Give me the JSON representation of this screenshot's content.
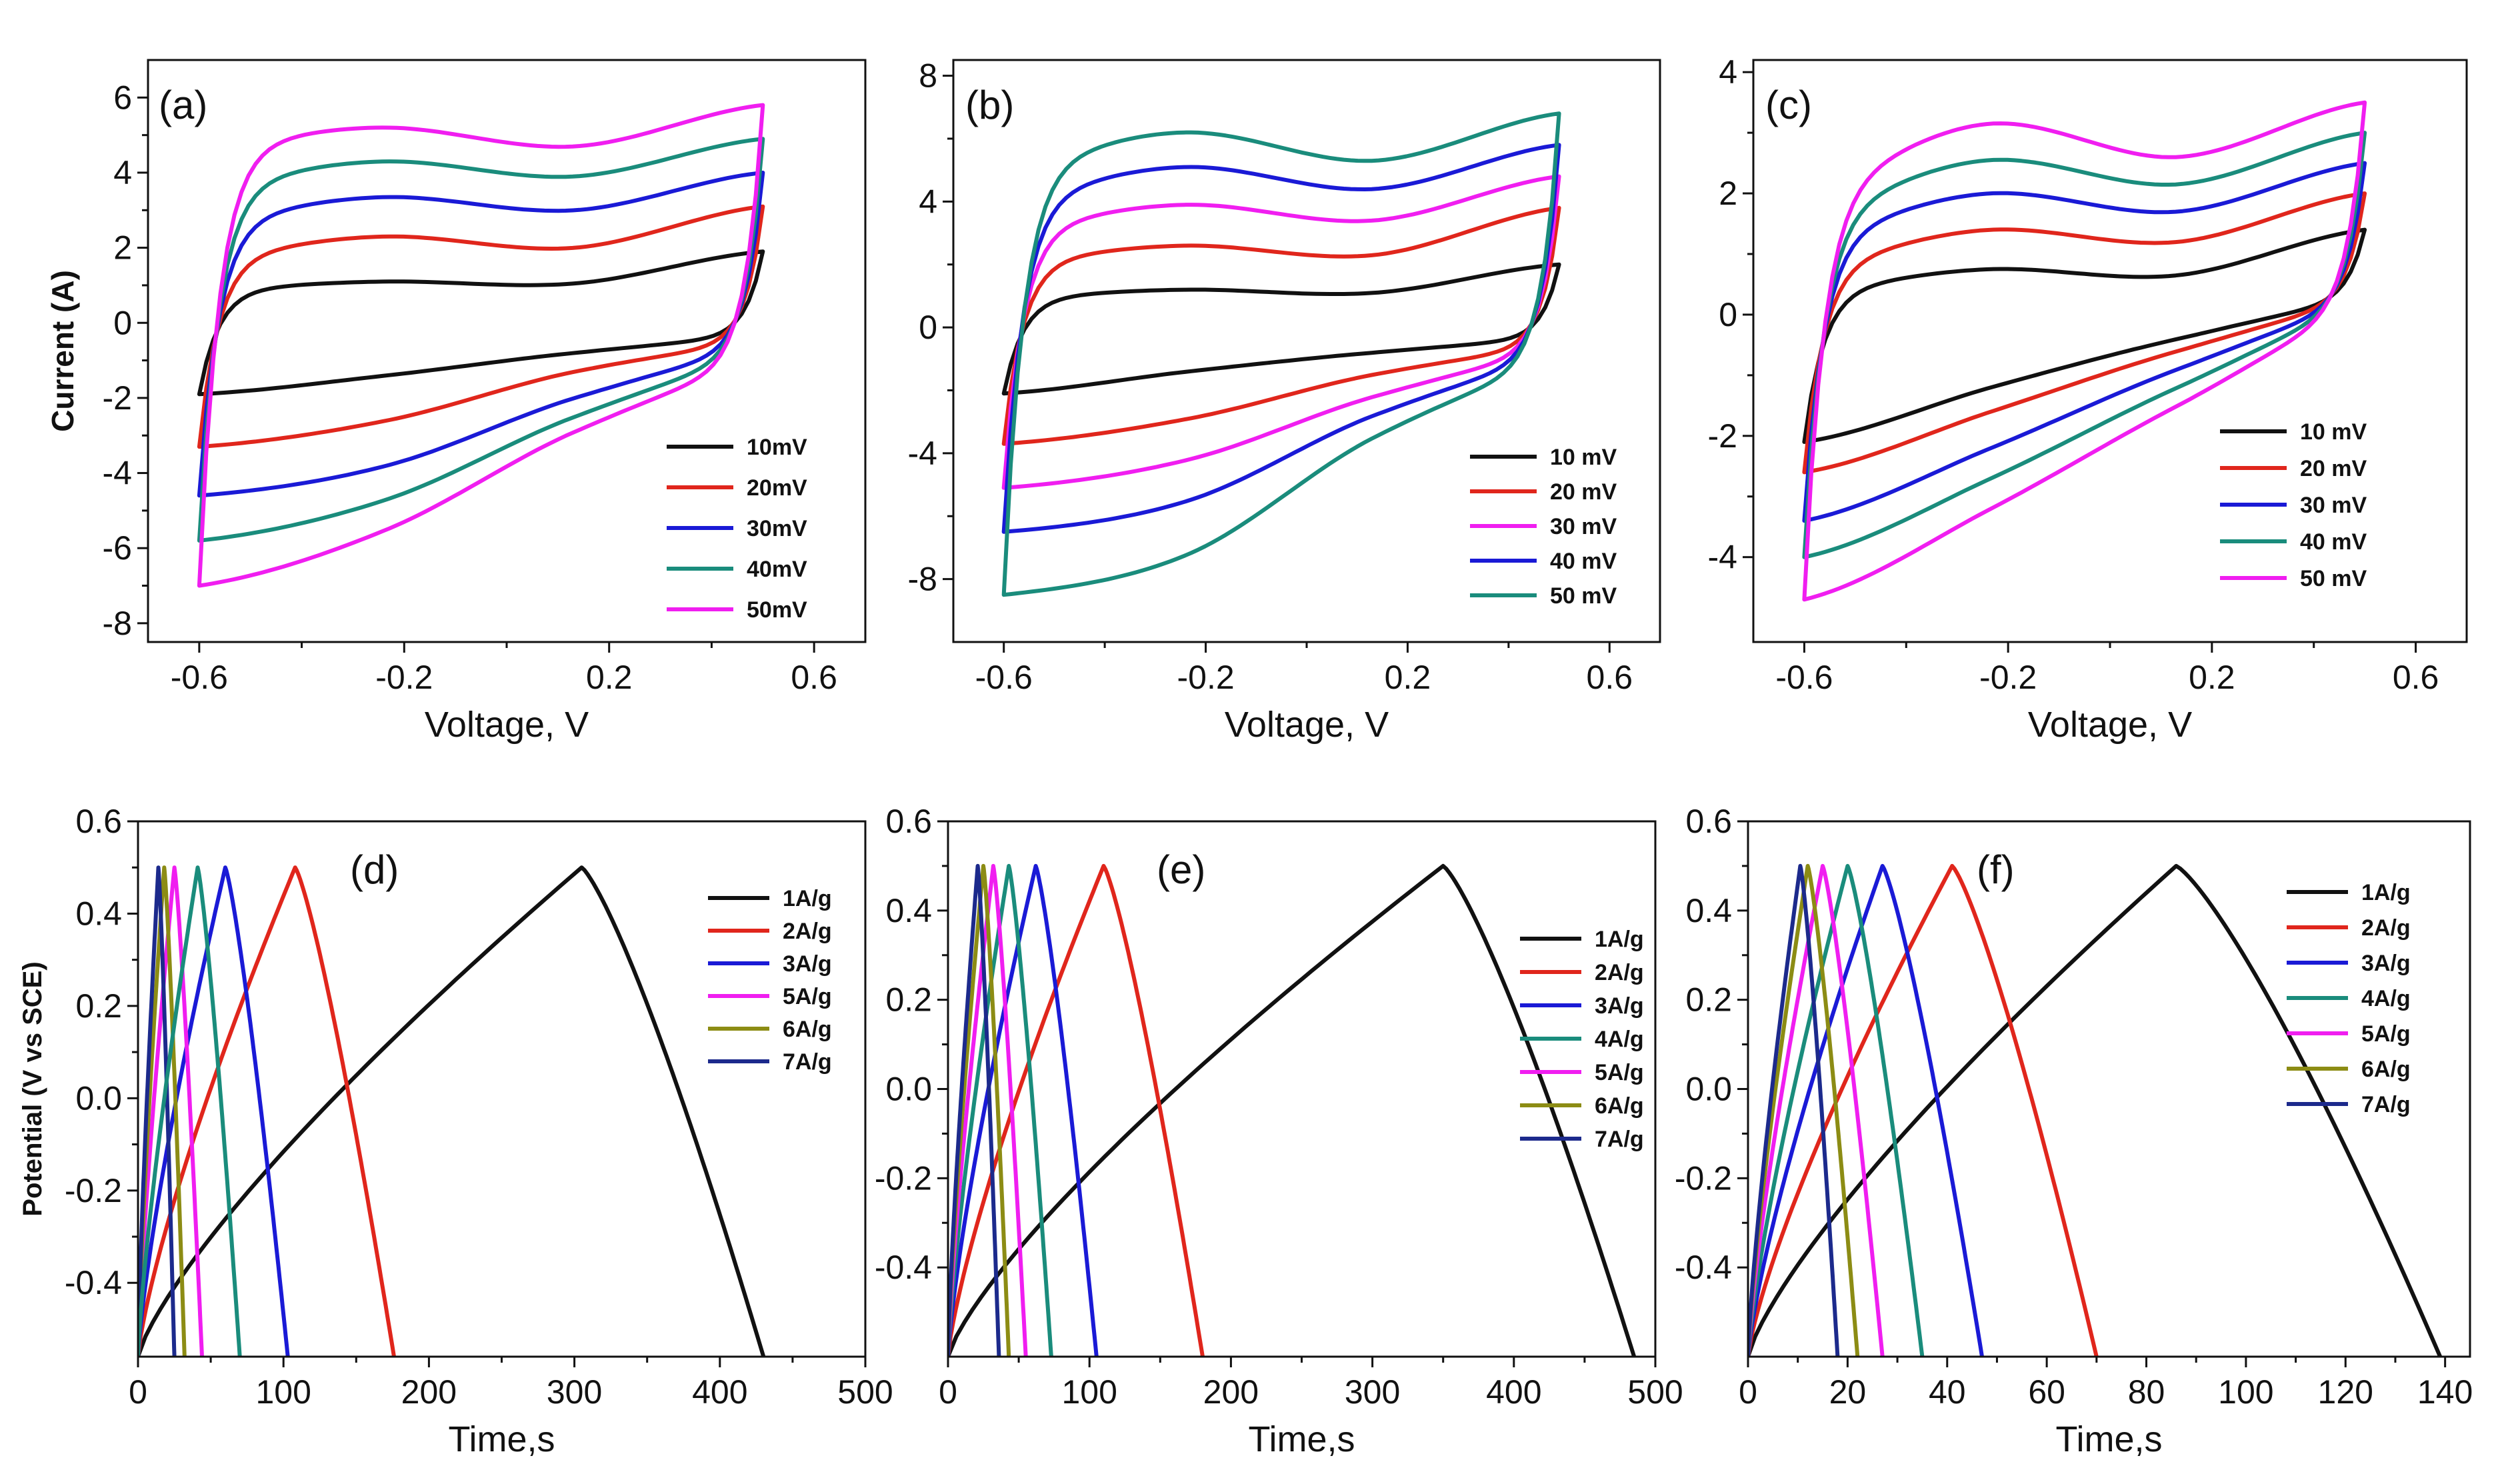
{
  "colors": {
    "black": "#111111",
    "red": "#e0261c",
    "blue": "#1a1ad6",
    "magenta": "#f01ef0",
    "teal": "#1a8c7c",
    "olive": "#8c8c14",
    "navy": "#1c2a8c"
  },
  "chart_data": [
    {
      "id": "a",
      "type": "line",
      "label": "(a)",
      "xlabel": "Voltage, V",
      "ylabel": "Current (A)",
      "xlim": [
        -0.7,
        0.7
      ],
      "ylim": [
        -8.5,
        7
      ],
      "xticks": [
        -0.6,
        -0.2,
        0.2,
        0.6
      ],
      "xtick_labels": [
        "-0.6",
        "-0.2",
        "0.2",
        "0.6"
      ],
      "yticks": [
        -8,
        -6,
        -4,
        -2,
        0,
        2,
        4,
        6
      ],
      "ytick_labels": [
        "-8",
        "-6",
        "-4",
        "-2",
        "0",
        "2",
        "4",
        "6"
      ],
      "x_range": [
        -0.6,
        0.5
      ],
      "series": [
        {
          "name": "10mV",
          "color": "#111111",
          "upper": [
            0.93,
            1.1,
            1.05,
            1.9
          ],
          "lower": [
            -1.9,
            -1.4,
            -0.8,
            -0.4
          ]
        },
        {
          "name": "20mV",
          "color": "#e0261c",
          "upper": [
            1.85,
            2.3,
            2.0,
            3.1
          ],
          "lower": [
            -3.3,
            -2.6,
            -1.3,
            -0.6
          ]
        },
        {
          "name": "30mV",
          "color": "#1a1ad6",
          "upper": [
            2.85,
            3.35,
            3.0,
            4.0
          ],
          "lower": [
            -4.6,
            -3.8,
            -2.0,
            -0.8
          ]
        },
        {
          "name": "40mV",
          "color": "#1a8c7c",
          "upper": [
            3.8,
            4.3,
            3.9,
            4.9
          ],
          "lower": [
            -5.8,
            -4.7,
            -2.5,
            -1.0
          ]
        },
        {
          "name": "50mV",
          "color": "#f01ef0",
          "upper": [
            4.8,
            5.2,
            4.7,
            5.8
          ],
          "lower": [
            -7.0,
            -5.5,
            -2.9,
            -1.2
          ]
        }
      ]
    },
    {
      "id": "b",
      "type": "line",
      "label": "(b)",
      "xlabel": "Voltage, V",
      "ylabel": "",
      "xlim": [
        -0.7,
        0.7
      ],
      "ylim": [
        -10,
        8.5
      ],
      "xticks": [
        -0.6,
        -0.2,
        0.2,
        0.6
      ],
      "xtick_labels": [
        "-0.6",
        "-0.2",
        "0.2",
        "0.6"
      ],
      "yticks": [
        -8,
        -4,
        0,
        4,
        8
      ],
      "ytick_labels": [
        "-8",
        "-4",
        "0",
        "4",
        "8"
      ],
      "x_range": [
        -0.6,
        0.5
      ],
      "series": [
        {
          "name": "10 mV",
          "color": "#111111",
          "upper": [
            1.0,
            1.2,
            1.1,
            2.0
          ],
          "lower": [
            -2.1,
            -1.4,
            -0.8,
            -0.4
          ]
        },
        {
          "name": "20 mV",
          "color": "#e0261c",
          "upper": [
            2.2,
            2.6,
            2.3,
            3.8
          ],
          "lower": [
            -3.7,
            -2.9,
            -1.5,
            -0.7
          ]
        },
        {
          "name": "30 mV",
          "color": "#f01ef0",
          "upper": [
            3.3,
            3.9,
            3.4,
            4.8
          ],
          "lower": [
            -5.1,
            -4.2,
            -2.2,
            -0.9
          ]
        },
        {
          "name": "40 mV",
          "color": "#1a1ad6",
          "upper": [
            4.3,
            5.1,
            4.4,
            5.8
          ],
          "lower": [
            -6.5,
            -5.5,
            -2.8,
            -1.1
          ]
        },
        {
          "name": "50 mV",
          "color": "#1a8c7c",
          "upper": [
            5.3,
            6.2,
            5.3,
            6.8
          ],
          "lower": [
            -8.5,
            -7.2,
            -3.5,
            -1.3
          ]
        }
      ]
    },
    {
      "id": "c",
      "type": "line",
      "label": "(c)",
      "xlabel": "Voltage, V",
      "ylabel": "",
      "xlim": [
        -0.7,
        0.7
      ],
      "ylim": [
        -5.4,
        4.2
      ],
      "xticks": [
        -0.6,
        -0.2,
        0.2,
        0.6
      ],
      "xtick_labels": [
        "-0.6",
        "-0.2",
        "0.2",
        "0.6"
      ],
      "yticks": [
        -4,
        -2,
        0,
        2,
        4
      ],
      "ytick_labels": [
        "-4",
        "-2",
        "0",
        "2",
        "4"
      ],
      "x_range": [
        -0.6,
        0.5
      ],
      "series": [
        {
          "name": "10 mV",
          "color": "#111111",
          "upper": [
            0.45,
            0.75,
            0.65,
            1.4
          ],
          "lower": [
            -2.1,
            -1.2,
            -0.4,
            0.2
          ]
        },
        {
          "name": "20 mV",
          "color": "#e0261c",
          "upper": [
            0.9,
            1.4,
            1.2,
            2.0
          ],
          "lower": [
            -2.6,
            -1.6,
            -0.6,
            0.15
          ]
        },
        {
          "name": "30 mV",
          "color": "#1a1ad6",
          "upper": [
            1.4,
            2.0,
            1.7,
            2.5
          ],
          "lower": [
            -3.4,
            -2.2,
            -0.9,
            0.1
          ]
        },
        {
          "name": "40 mV",
          "color": "#1a8c7c",
          "upper": [
            1.8,
            2.55,
            2.15,
            3.0
          ],
          "lower": [
            -4.0,
            -2.7,
            -1.2,
            0.05
          ]
        },
        {
          "name": "50 mV",
          "color": "#f01ef0",
          "upper": [
            2.2,
            3.15,
            2.6,
            3.5
          ],
          "lower": [
            -4.7,
            -3.2,
            -1.5,
            0.0
          ]
        }
      ]
    },
    {
      "id": "d",
      "type": "line",
      "label": "(d)",
      "xlabel": "Time,s",
      "ylabel": "Potential (V vs SCE)",
      "xlim": [
        0,
        500
      ],
      "ylim": [
        -0.56,
        0.6
      ],
      "xticks": [
        0,
        100,
        200,
        300,
        400,
        500
      ],
      "xtick_labels": [
        "0",
        "100",
        "200",
        "300",
        "400",
        "500"
      ],
      "yticks": [
        -0.4,
        -0.2,
        0.0,
        0.2,
        0.4,
        0.6
      ],
      "ytick_labels": [
        "-0.4",
        "-0.2",
        "0.0",
        "0.2",
        "0.4",
        "0.6"
      ],
      "v_range": [
        -0.56,
        0.5
      ],
      "series": [
        {
          "name": "1A/g",
          "color": "#111111",
          "t_peak": 305,
          "t_end": 430
        },
        {
          "name": "2A/g",
          "color": "#e0261c",
          "t_peak": 108,
          "t_end": 176
        },
        {
          "name": "3A/g",
          "color": "#1a1ad6",
          "t_peak": 60,
          "t_end": 103
        },
        {
          "name": "5A/g",
          "color": "#f01ef0",
          "t_peak": 25,
          "t_end": 44
        },
        {
          "name": "6A/g",
          "color": "#8c8c14",
          "t_peak": 18,
          "t_end": 32
        },
        {
          "name": "7A/g",
          "color": "#1c2a8c",
          "t_peak": 14,
          "t_end": 25
        }
      ],
      "extra_series": [
        {
          "name": "",
          "color": "#1a8c7c",
          "t_peak": 41,
          "t_end": 70
        }
      ]
    },
    {
      "id": "e",
      "type": "line",
      "label": "(e)",
      "xlabel": "Time,s",
      "ylabel": "",
      "xlim": [
        0,
        500
      ],
      "ylim": [
        -0.6,
        0.6
      ],
      "xticks": [
        0,
        100,
        200,
        300,
        400,
        500
      ],
      "xtick_labels": [
        "0",
        "100",
        "200",
        "300",
        "400",
        "500"
      ],
      "yticks": [
        -0.4,
        -0.2,
        0.0,
        0.2,
        0.4,
        0.6
      ],
      "ytick_labels": [
        "-0.4",
        "-0.2",
        "0.0",
        "0.2",
        "0.4",
        "0.6"
      ],
      "v_range": [
        -0.6,
        0.5
      ],
      "series": [
        {
          "name": "1A/g",
          "color": "#111111",
          "t_peak": 350,
          "t_end": 485
        },
        {
          "name": "2A/g",
          "color": "#e0261c",
          "t_peak": 110,
          "t_end": 180
        },
        {
          "name": "3A/g",
          "color": "#1a1ad6",
          "t_peak": 62,
          "t_end": 105
        },
        {
          "name": "4A/g",
          "color": "#1a8c7c",
          "t_peak": 43,
          "t_end": 73
        },
        {
          "name": "5A/g",
          "color": "#f01ef0",
          "t_peak": 32,
          "t_end": 55
        },
        {
          "name": "6A/g",
          "color": "#8c8c14",
          "t_peak": 25,
          "t_end": 43
        },
        {
          "name": "7A/g",
          "color": "#1c2a8c",
          "t_peak": 21,
          "t_end": 36
        }
      ]
    },
    {
      "id": "f",
      "type": "line",
      "label": "(f)",
      "xlabel": "Time,s",
      "ylabel": "",
      "xlim": [
        0,
        145
      ],
      "ylim": [
        -0.6,
        0.6
      ],
      "xticks": [
        0,
        20,
        40,
        60,
        80,
        100,
        120,
        140
      ],
      "xtick_labels": [
        "0",
        "20",
        "40",
        "60",
        "80",
        "100",
        "120",
        "140"
      ],
      "yticks": [
        -0.4,
        -0.2,
        0.0,
        0.2,
        0.4,
        0.6
      ],
      "ytick_labels": [
        "-0.4",
        "-0.2",
        "0.0",
        "0.2",
        "0.4",
        "0.6"
      ],
      "v_range": [
        -0.6,
        0.5
      ],
      "series": [
        {
          "name": "1A/g",
          "color": "#111111",
          "t_peak": 86,
          "t_end": 139
        },
        {
          "name": "2A/g",
          "color": "#e0261c",
          "t_peak": 41,
          "t_end": 70
        },
        {
          "name": "3A/g",
          "color": "#1a1ad6",
          "t_peak": 27,
          "t_end": 47
        },
        {
          "name": "4A/g",
          "color": "#1a8c7c",
          "t_peak": 20,
          "t_end": 35
        },
        {
          "name": "5A/g",
          "color": "#f01ef0",
          "t_peak": 15,
          "t_end": 27
        },
        {
          "name": "6A/g",
          "color": "#8c8c14",
          "t_peak": 12,
          "t_end": 22
        },
        {
          "name": "7A/g",
          "color": "#1c2a8c",
          "t_peak": 10.5,
          "t_end": 18
        }
      ]
    }
  ]
}
